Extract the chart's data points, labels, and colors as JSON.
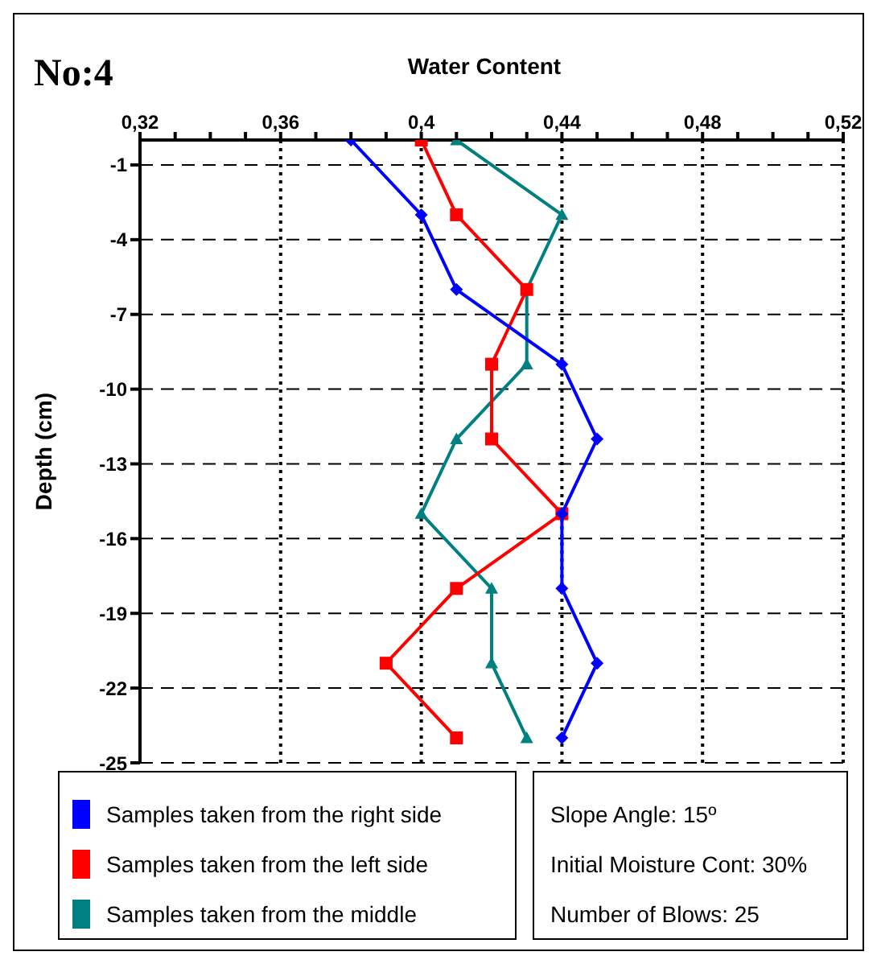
{
  "chart_data": {
    "type": "line",
    "title": "No:4",
    "xlabel": "Water Content",
    "ylabel": "Depth (cm)",
    "series": [
      {
        "name": "Samples taken from the right side",
        "color": "#0000ff",
        "marker": "diamond",
        "x": [
          0.38,
          0.4,
          0.41,
          0.44,
          0.45,
          0.44,
          0.44,
          0.45,
          0.44
        ],
        "values": [
          0,
          -3,
          -6,
          -9,
          -12,
          -15,
          -18,
          -21,
          -24
        ]
      },
      {
        "name": "Samples taken from the left side",
        "color": "#ff0000",
        "marker": "square",
        "x": [
          0.4,
          0.41,
          0.43,
          0.42,
          0.42,
          0.44,
          0.41,
          0.39,
          0.41
        ],
        "values": [
          0,
          -3,
          -6,
          -9,
          -12,
          -15,
          -18,
          -21,
          -24
        ]
      },
      {
        "name": "Samples taken from the middle",
        "color": "#008080",
        "marker": "triangle",
        "x": [
          0.41,
          0.44,
          0.43,
          0.43,
          0.41,
          0.4,
          0.42,
          0.42,
          0.43
        ],
        "values": [
          0,
          -3,
          -6,
          -9,
          -12,
          -15,
          -18,
          -21,
          -24
        ]
      }
    ],
    "xlim": [
      0.32,
      0.52
    ],
    "xticks": [
      {
        "value": 0.32,
        "label": "0,32"
      },
      {
        "value": 0.33,
        "label": null
      },
      {
        "value": 0.34,
        "label": null
      },
      {
        "value": 0.35,
        "label": null
      },
      {
        "value": 0.36,
        "label": "0,36"
      },
      {
        "value": 0.37,
        "label": null
      },
      {
        "value": 0.38,
        "label": null
      },
      {
        "value": 0.39,
        "label": null
      },
      {
        "value": 0.4,
        "label": "0,4"
      },
      {
        "value": 0.41,
        "label": null
      },
      {
        "value": 0.42,
        "label": null
      },
      {
        "value": 0.43,
        "label": null
      },
      {
        "value": 0.44,
        "label": "0,44"
      },
      {
        "value": 0.45,
        "label": null
      },
      {
        "value": 0.46,
        "label": null
      },
      {
        "value": 0.47,
        "label": null
      },
      {
        "value": 0.48,
        "label": "0,48"
      },
      {
        "value": 0.49,
        "label": null
      },
      {
        "value": 0.5,
        "label": null
      },
      {
        "value": 0.51,
        "label": null
      },
      {
        "value": 0.52,
        "label": "0,52"
      }
    ],
    "ylim": [
      -25,
      0
    ],
    "yticks": [
      -1,
      -4,
      -7,
      -10,
      -13,
      -16,
      -19,
      -22,
      -25
    ],
    "grid": true,
    "legend": "bottom",
    "annotations": [
      "Slope Angle: 15º",
      "Initial Moisture Cont: 30%",
      "Number of Blows: 25"
    ]
  }
}
